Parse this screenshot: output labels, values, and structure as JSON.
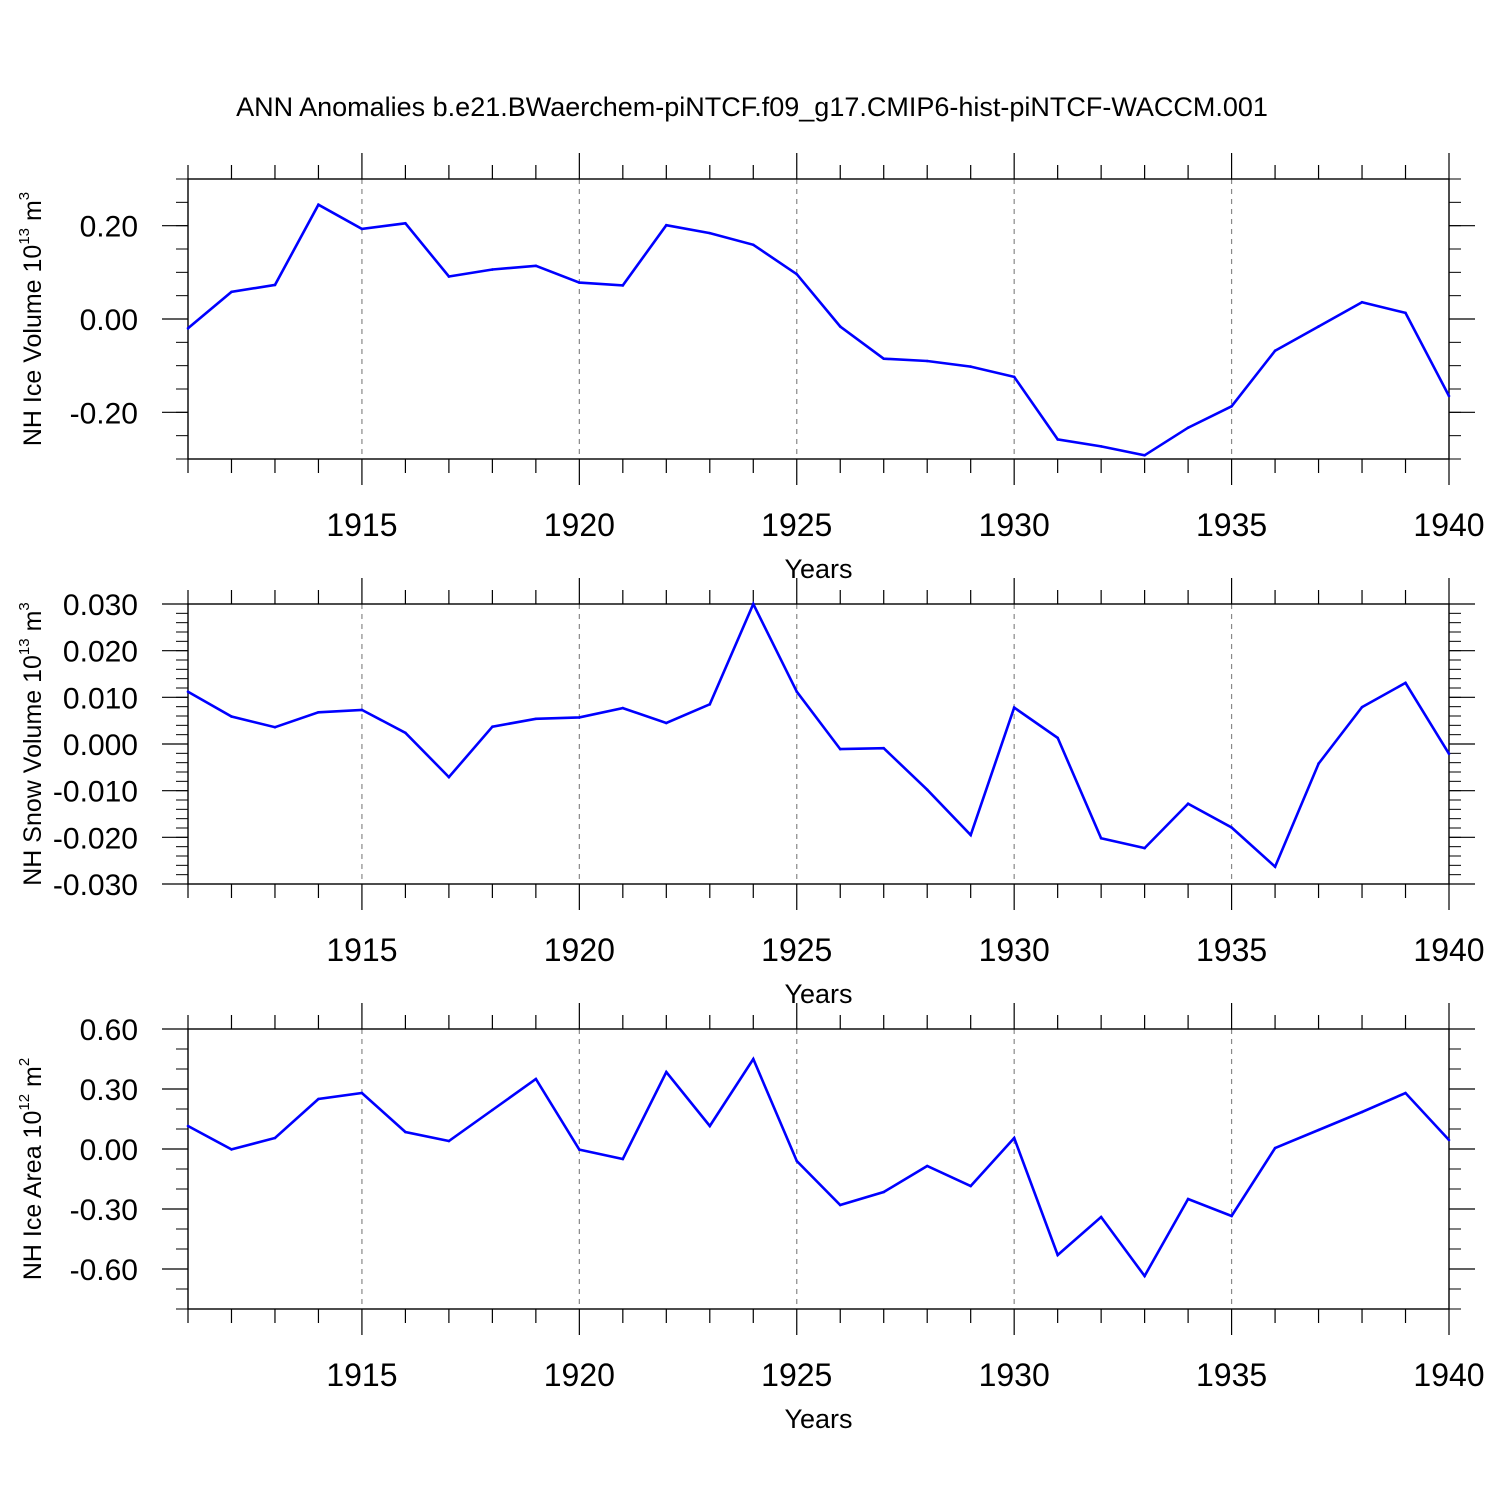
{
  "title": "ANN Anomalies b.e21.BWaerchem-piNTCF.f09_g17.CMIP6-hist-piNTCF-WACCM.001",
  "chart_data": [
    {
      "type": "line",
      "id": "ice-volume",
      "ylabel_main": "NH Ice Volume 10",
      "ylabel_exp": "13",
      "ylabel_unit": "m",
      "ylabel_unit_exp": "3",
      "xlabel": "Years",
      "xlim": [
        1911,
        1940
      ],
      "ylim": [
        -0.3,
        0.3
      ],
      "xticks": [
        "1915",
        "1920",
        "1925",
        "1930",
        "1935",
        "1940"
      ],
      "yticks": [
        {
          "v": 0.2,
          "label": "0.20"
        },
        {
          "v": 0.0,
          "label": "0.00"
        },
        {
          "v": -0.2,
          "label": "-0.20"
        }
      ],
      "yminor": 0.05,
      "color": "#0000ff",
      "x": [
        1911,
        1912,
        1913,
        1914,
        1915,
        1916,
        1917,
        1918,
        1919,
        1920,
        1921,
        1922,
        1923,
        1924,
        1925,
        1926,
        1927,
        1928,
        1929,
        1930,
        1931,
        1932,
        1933,
        1934,
        1935,
        1936,
        1937,
        1938,
        1939,
        1940
      ],
      "y": [
        -0.02,
        0.058,
        0.073,
        0.245,
        0.193,
        0.205,
        0.091,
        0.106,
        0.114,
        0.078,
        0.072,
        0.201,
        0.184,
        0.159,
        0.096,
        -0.016,
        -0.085,
        -0.09,
        -0.102,
        -0.124,
        -0.258,
        -0.273,
        -0.292,
        -0.233,
        -0.187,
        -0.068,
        -0.016,
        0.036,
        0.013,
        -0.165
      ]
    },
    {
      "type": "line",
      "id": "snow-volume",
      "ylabel_main": "NH Snow Volume 10",
      "ylabel_exp": "13",
      "ylabel_unit": "m",
      "ylabel_unit_exp": "3",
      "xlabel": "Years",
      "xlim": [
        1911,
        1940
      ],
      "ylim": [
        -0.03,
        0.03
      ],
      "xticks": [
        "1915",
        "1920",
        "1925",
        "1930",
        "1935",
        "1940"
      ],
      "yticks": [
        {
          "v": 0.03,
          "label": "0.030"
        },
        {
          "v": 0.02,
          "label": "0.020"
        },
        {
          "v": 0.01,
          "label": "0.010"
        },
        {
          "v": 0.0,
          "label": "0.000"
        },
        {
          "v": -0.01,
          "label": "-0.010"
        },
        {
          "v": -0.02,
          "label": "-0.020"
        },
        {
          "v": -0.03,
          "label": "-0.030"
        }
      ],
      "yminor": 0.002,
      "color": "#0000ff",
      "x": [
        1911,
        1912,
        1913,
        1914,
        1915,
        1916,
        1917,
        1918,
        1919,
        1920,
        1921,
        1922,
        1923,
        1924,
        1925,
        1926,
        1927,
        1928,
        1929,
        1930,
        1931,
        1932,
        1933,
        1934,
        1935,
        1936,
        1937,
        1938,
        1939,
        1940
      ],
      "y": [
        0.0112,
        0.0059,
        0.0036,
        0.0068,
        0.0073,
        0.0024,
        -0.0071,
        0.0037,
        0.0054,
        0.0057,
        0.0077,
        0.0045,
        0.0085,
        0.03,
        0.0112,
        -0.0011,
        -0.0009,
        -0.0098,
        -0.0195,
        0.0078,
        0.0013,
        -0.0202,
        -0.0223,
        -0.0128,
        -0.0179,
        -0.0263,
        -0.0042,
        0.0079,
        0.0131,
        -0.0021
      ]
    },
    {
      "type": "line",
      "id": "ice-area",
      "ylabel_main": "NH Ice Area 10",
      "ylabel_exp": "12",
      "ylabel_unit": "m",
      "ylabel_unit_exp": "2",
      "xlabel": "Years",
      "xlim": [
        1911,
        1940
      ],
      "ylim": [
        -0.8,
        0.6
      ],
      "xticks": [
        "1915",
        "1920",
        "1925",
        "1930",
        "1935",
        "1940"
      ],
      "yticks": [
        {
          "v": 0.6,
          "label": "0.60"
        },
        {
          "v": 0.3,
          "label": "0.30"
        },
        {
          "v": 0.0,
          "label": "0.00"
        },
        {
          "v": -0.3,
          "label": "-0.30"
        },
        {
          "v": -0.6,
          "label": "-0.60"
        }
      ],
      "yminor": 0.1,
      "color": "#0000ff",
      "x": [
        1911,
        1912,
        1913,
        1914,
        1915,
        1916,
        1917,
        1918,
        1919,
        1920,
        1921,
        1922,
        1923,
        1924,
        1925,
        1926,
        1927,
        1928,
        1929,
        1930,
        1931,
        1932,
        1933,
        1934,
        1935,
        1936,
        1937,
        1938,
        1939,
        1940
      ],
      "y": [
        0.115,
        -0.002,
        0.055,
        0.25,
        0.28,
        0.085,
        0.04,
        0.195,
        0.35,
        -0.003,
        -0.05,
        0.385,
        0.115,
        0.45,
        -0.06,
        -0.28,
        -0.215,
        -0.085,
        -0.185,
        0.055,
        -0.53,
        -0.34,
        -0.635,
        -0.25,
        -0.335,
        0.005,
        0.095,
        0.185,
        0.28,
        0.045
      ]
    }
  ]
}
